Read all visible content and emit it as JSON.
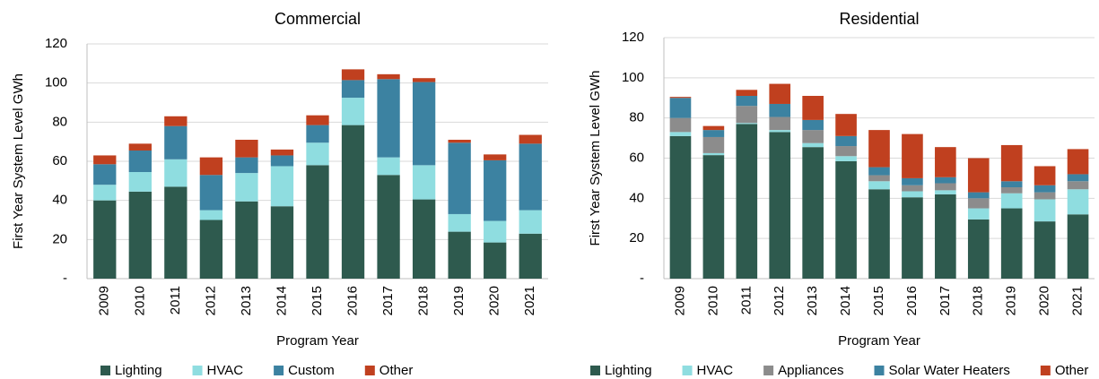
{
  "chart_data": [
    {
      "type": "stacked-bar",
      "title": "Commercial",
      "ylabel": "First Year System Level GWh",
      "xlabel": "Program Year",
      "categories": [
        "2009",
        "2010",
        "2011",
        "2012",
        "2013",
        "2014",
        "2015",
        "2016",
        "2017",
        "2018",
        "2019",
        "2020",
        "2021"
      ],
      "ylim": [
        0,
        120
      ],
      "yticks": [
        {
          "value": 0,
          "label": "-"
        },
        20,
        40,
        60,
        80,
        100,
        120
      ],
      "grid": true,
      "legend": "bottom",
      "series": [
        {
          "name": "Lighting",
          "color": "#2e5a4e",
          "values": [
            40,
            44.5,
            47,
            30,
            39.5,
            37,
            58,
            78.5,
            53,
            40.5,
            24,
            18.5,
            23
          ]
        },
        {
          "name": "HVAC",
          "color": "#8fdde0",
          "values": [
            8,
            10,
            14,
            5,
            14.5,
            20.5,
            11.5,
            14,
            9,
            17.5,
            9,
            11,
            12
          ]
        },
        {
          "name": "Custom",
          "color": "#3c82a1",
          "values": [
            10.5,
            11,
            17,
            18,
            8,
            5.5,
            9,
            9,
            40,
            42.5,
            36.5,
            31,
            34
          ]
        },
        {
          "name": "Other",
          "color": "#c0401f",
          "values": [
            4.5,
            3.5,
            5,
            9,
            9,
            3,
            5,
            5.5,
            2.5,
            2,
            1.5,
            3,
            4.5
          ]
        }
      ]
    },
    {
      "type": "stacked-bar",
      "title": "Residential",
      "ylabel": "First Year System Level GWh",
      "xlabel": "Program Year",
      "categories": [
        "2009",
        "2010",
        "2011",
        "2012",
        "2013",
        "2014",
        "2015",
        "2016",
        "2017",
        "2018",
        "2019",
        "2020",
        "2021"
      ],
      "ylim": [
        0,
        120
      ],
      "yticks": [
        {
          "value": 0,
          "label": "-"
        },
        20,
        40,
        60,
        80,
        100,
        120
      ],
      "grid": true,
      "legend": "bottom",
      "series": [
        {
          "name": "Lighting",
          "color": "#2e5a4e",
          "values": [
            71,
            61.5,
            77,
            73,
            65.5,
            58.5,
            44.5,
            40.5,
            42,
            29.5,
            35,
            28.5,
            32
          ]
        },
        {
          "name": "HVAC",
          "color": "#8fdde0",
          "values": [
            2,
            1,
            0.5,
            1,
            2,
            2.5,
            4,
            3,
            2,
            5.5,
            7.5,
            11,
            12.5
          ]
        },
        {
          "name": "Appliances",
          "color": "#8c8c8c",
          "values": [
            7,
            8,
            8.5,
            6.5,
            6.5,
            5,
            3,
            3,
            3.5,
            5,
            3,
            3.5,
            4
          ]
        },
        {
          "name": "Solar Water Heaters",
          "color": "#3c82a1",
          "values": [
            10,
            3.5,
            5,
            6.5,
            5,
            5,
            4,
            3.5,
            3,
            3,
            3,
            3.5,
            3.5
          ]
        },
        {
          "name": "Other",
          "color": "#c0401f",
          "values": [
            0.5,
            2,
            3,
            10,
            12,
            11,
            18.5,
            22,
            15,
            17,
            18,
            9.5,
            12.5
          ]
        }
      ]
    }
  ]
}
